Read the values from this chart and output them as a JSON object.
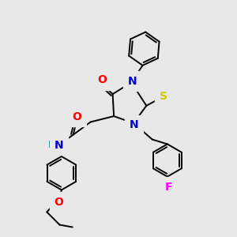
{
  "bg_color": "#e8e8e8",
  "bond_color": "#000000",
  "atom_colors": {
    "N": "#0000cc",
    "O": "#ff0000",
    "S": "#cccc00",
    "F": "#ff00ff",
    "H": "#008080",
    "C": "#000000"
  },
  "bond_width": 1.4,
  "figsize": [
    3.0,
    3.0
  ],
  "dpi": 100,
  "xlim": [
    0,
    10
  ],
  "ylim": [
    0,
    10
  ]
}
